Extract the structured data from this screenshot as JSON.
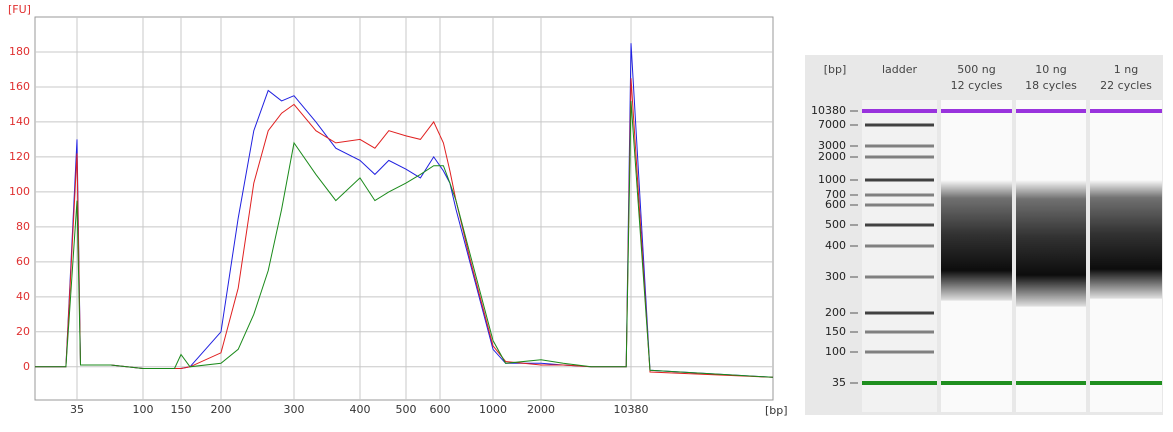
{
  "chart_data": [
    {
      "type": "line",
      "xlabel": "[bp]",
      "ylabel": "[FU]",
      "x": [
        28,
        33,
        35,
        37,
        60,
        100,
        140,
        150,
        160,
        200,
        220,
        240,
        260,
        280,
        300,
        330,
        360,
        400,
        430,
        460,
        500,
        540,
        580,
        620,
        660,
        700,
        800,
        1000,
        1200,
        2000,
        3000,
        5000,
        9500,
        10380,
        11000,
        16000
      ],
      "series": [
        {
          "color": "#2020e0",
          "values": [
            0,
            0,
            130,
            1,
            1,
            -1,
            -1,
            -1,
            0,
            20,
            85,
            135,
            158,
            152,
            155,
            140,
            125,
            118,
            110,
            118,
            113,
            108,
            120,
            112,
            105,
            90,
            60,
            10,
            2,
            2,
            1,
            0,
            0,
            185,
            -2,
            -6
          ]
        },
        {
          "color": "#e02020",
          "values": [
            0,
            0,
            122,
            1,
            1,
            -1,
            -1,
            -1,
            0,
            8,
            45,
            105,
            135,
            145,
            150,
            135,
            128,
            130,
            125,
            135,
            132,
            130,
            140,
            128,
            112,
            95,
            62,
            12,
            3,
            1,
            1,
            0,
            0,
            165,
            -3,
            -6
          ]
        },
        {
          "color": "#1a8a1a",
          "values": [
            0,
            0,
            95,
            1,
            1,
            -1,
            -1,
            7,
            0,
            2,
            10,
            30,
            55,
            90,
            128,
            110,
            95,
            108,
            95,
            100,
            105,
            110,
            115,
            115,
            105,
            95,
            65,
            15,
            2,
            4,
            2,
            0,
            0,
            152,
            -2,
            -6
          ]
        }
      ],
      "xlim": [
        28,
        16000
      ],
      "xticks": [
        35,
        100,
        150,
        200,
        300,
        400,
        500,
        600,
        1000,
        2000,
        10380
      ],
      "ylim": [
        -19,
        200
      ],
      "yticks": [
        0,
        20,
        40,
        60,
        80,
        100,
        120,
        140,
        160,
        180
      ],
      "grid": true
    },
    {
      "type": "gel",
      "ylabel": "[bp]",
      "ylim": [
        25,
        15000
      ],
      "yticks": [
        35,
        100,
        150,
        200,
        300,
        400,
        500,
        600,
        700,
        1000,
        2000,
        3000,
        7000,
        10380
      ],
      "markers": [
        {
          "value": 10380,
          "color": "#9933dd"
        },
        {
          "value": 35,
          "color": "#1f8f1f"
        }
      ],
      "lanes": [
        {
          "name": "ladder"
        },
        {
          "name": [
            "500 ng",
            "12 cycles"
          ],
          "smear": [
            230,
            1000
          ]
        },
        {
          "name": [
            "10 ng",
            "18 cycles"
          ],
          "smear": [
            215,
            1000
          ]
        },
        {
          "name": [
            "1 ng",
            "22 cycles"
          ],
          "smear": [
            235,
            1000
          ]
        }
      ]
    }
  ]
}
